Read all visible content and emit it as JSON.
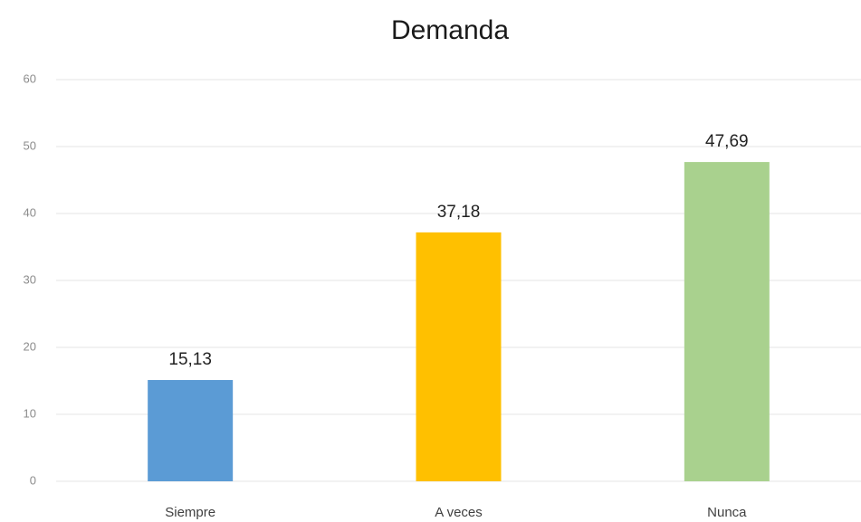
{
  "chart_data": {
    "type": "bar",
    "title": "Demanda",
    "categories": [
      "Siempre",
      "A veces",
      "Nunca"
    ],
    "values": [
      15.13,
      37.18,
      47.69
    ],
    "value_labels": [
      "15,13",
      "37,18",
      "47,69"
    ],
    "colors": [
      "#5b9bd5",
      "#ffc000",
      "#a9d18e"
    ],
    "ylim": [
      0,
      60
    ],
    "yticks": [
      0,
      10,
      20,
      30,
      40,
      50,
      60
    ],
    "grid": true
  }
}
